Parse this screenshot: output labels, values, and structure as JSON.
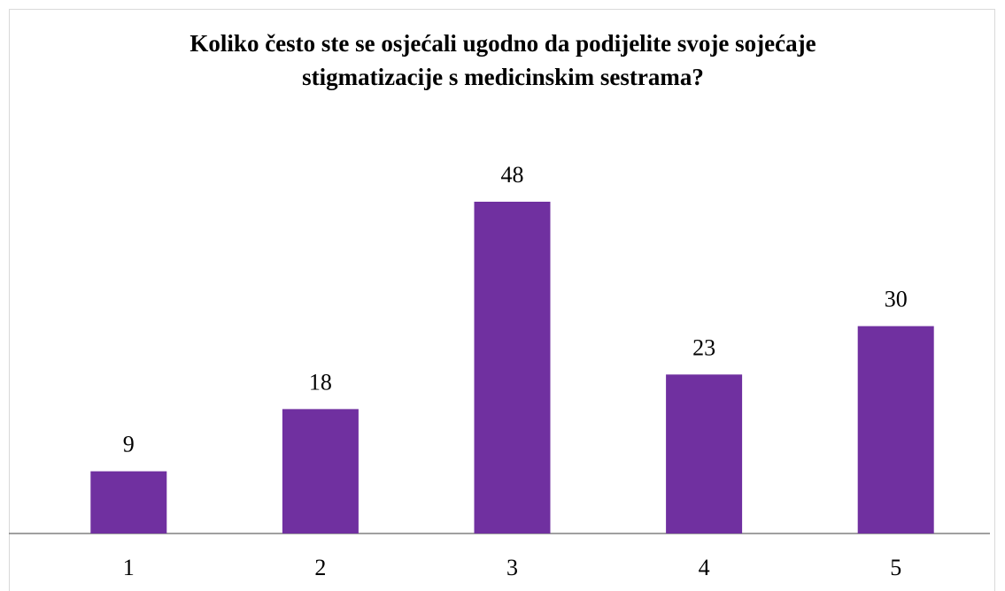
{
  "chart_data": {
    "type": "bar",
    "title": "Koliko često ste se osjećali ugodno da podijelite svoje sojećaje stigmatizacije s medicinskim sestrama?",
    "categories": [
      "1",
      "2",
      "3",
      "4",
      "5"
    ],
    "values": [
      9,
      18,
      48,
      23,
      30
    ],
    "color": "#7030a0"
  }
}
